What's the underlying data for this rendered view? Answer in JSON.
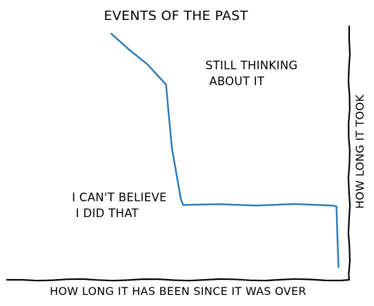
{
  "chart_data": {
    "type": "line",
    "title": "EVENTS OF THE PAST",
    "xlabel": "HOW LONG IT HAS BEEN SINCE IT WAS OVER",
    "ylabel": "HOW LONG IT TOOK",
    "ylabel_position": "right",
    "grid": false,
    "ticks": false,
    "xlim": [
      0,
      100
    ],
    "ylim": [
      0,
      100
    ],
    "series": [
      {
        "color": "#2b7bb9",
        "points": [
          {
            "x": 30.5,
            "y": 97.0
          },
          {
            "x": 35.5,
            "y": 91.0
          },
          {
            "x": 41.0,
            "y": 85.0
          },
          {
            "x": 46.5,
            "y": 77.0
          },
          {
            "x": 47.3,
            "y": 65.0
          },
          {
            "x": 48.2,
            "y": 52.0
          },
          {
            "x": 49.5,
            "y": 42.0
          },
          {
            "x": 50.8,
            "y": 32.0
          },
          {
            "x": 51.5,
            "y": 29.5
          },
          {
            "x": 62.0,
            "y": 29.8
          },
          {
            "x": 73.0,
            "y": 29.3
          },
          {
            "x": 84.0,
            "y": 29.9
          },
          {
            "x": 95.0,
            "y": 29.3
          },
          {
            "x": 96.3,
            "y": 29.0
          },
          {
            "x": 96.6,
            "y": 16.0
          },
          {
            "x": 96.9,
            "y": 5.0
          }
        ]
      }
    ],
    "annotations": [
      {
        "lines": [
          "STILL THINKING",
          " ABOUT IT"
        ],
        "x": 58.0,
        "y": 83.0
      },
      {
        "lines": [
          "I CAN'T BELIEVE",
          " I DID THAT"
        ],
        "x": 19.0,
        "y": 31.0
      }
    ]
  }
}
